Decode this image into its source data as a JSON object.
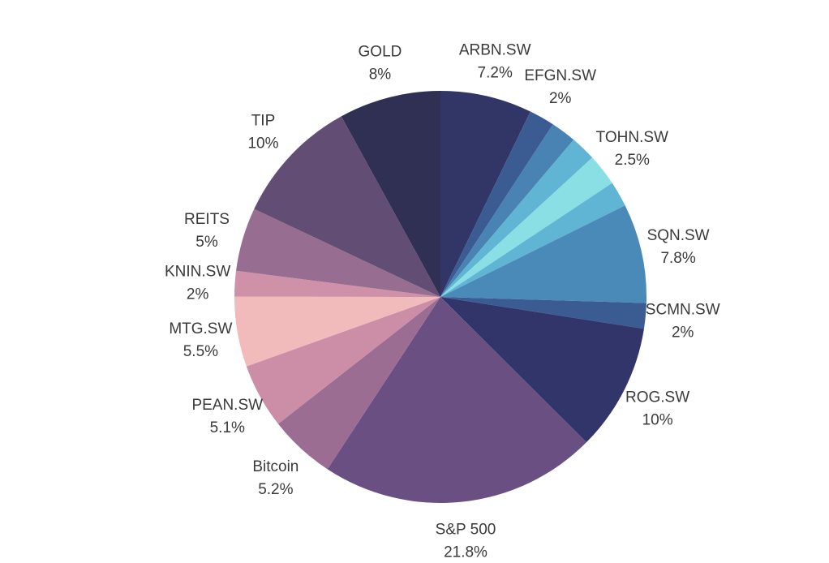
{
  "chart_data": {
    "type": "pie",
    "title": "",
    "start_angle_deg": 0,
    "direction": "clockwise",
    "slices": [
      {
        "label": "ARBN.SW",
        "value": 7.2,
        "display": "7.2%",
        "color": "#323667"
      },
      {
        "label": "EFGN.SW",
        "value": 2,
        "display": "2%",
        "color": "#3b5b93"
      },
      {
        "label": "",
        "value": 2,
        "display": "",
        "color": "#4883b4"
      },
      {
        "label": "",
        "value": 2,
        "display": "",
        "color": "#5fb5d3"
      },
      {
        "label": "TOHN.SW",
        "value": 2.5,
        "display": "2.5%",
        "color": "#8adfe4"
      },
      {
        "label": "",
        "value": 2,
        "display": "",
        "color": "#5fb5d3"
      },
      {
        "label": "SQN.SW",
        "value": 7.8,
        "display": "7.8%",
        "color": "#4a8ab8"
      },
      {
        "label": "SCMN.SW",
        "value": 2,
        "display": "2%",
        "color": "#3b5b93"
      },
      {
        "label": "ROG.SW",
        "value": 10,
        "display": "10%",
        "color": "#31356a"
      },
      {
        "label": "S&P 500",
        "value": 21.8,
        "display": "21.8%",
        "color": "#6a4f82"
      },
      {
        "label": "Bitcoin",
        "value": 5.2,
        "display": "5.2%",
        "color": "#9c6d93"
      },
      {
        "label": "PEAN.SW",
        "value": 5.1,
        "display": "5.1%",
        "color": "#cb8ea6"
      },
      {
        "label": "MTG.SW",
        "value": 5.5,
        "display": "5.5%",
        "color": "#f1babb"
      },
      {
        "label": "KNIN.SW",
        "value": 2,
        "display": "2%",
        "color": "#cf91a7"
      },
      {
        "label": "REITS",
        "value": 5,
        "display": "5%",
        "color": "#976e91"
      },
      {
        "label": "TIP",
        "value": 10,
        "display": "10%",
        "color": "#624e74"
      },
      {
        "label": "GOLD",
        "value": 8,
        "display": "8%",
        "color": "#303055"
      }
    ]
  }
}
